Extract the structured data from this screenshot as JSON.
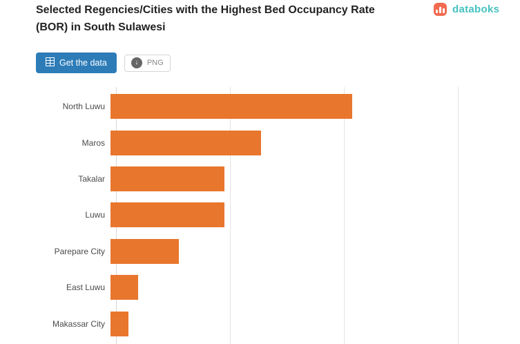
{
  "header": {
    "title": "Selected Regencies/Cities with the Highest Bed Occupancy Rate (BOR) in South Sulawesi",
    "brand": {
      "name": "databoks",
      "icon": "databoks-logo-icon"
    }
  },
  "toolbar": {
    "primary_button": "Get the data",
    "primary_icon": "table-data-icon",
    "secondary_button": "PNG",
    "secondary_icon": "download-image-icon"
  },
  "colors": {
    "bar": "#e8762d",
    "primary_button": "#2d7cb8",
    "brand_text": "#45c2c0",
    "brand_icon": "#f26b50",
    "gridline": "#e3e3e3"
  },
  "chart_data": {
    "type": "bar",
    "orientation": "horizontal",
    "title": "Selected Regencies/Cities with the Highest Bed Occupancy Rate (BOR) in South Sulawesi",
    "categories": [
      "North Luwu",
      "Maros",
      "Takalar",
      "Luwu",
      "Parepare City",
      "East Luwu",
      "Makassar City"
    ],
    "values": [
      53,
      33,
      25,
      25,
      15,
      6,
      4
    ],
    "unit": "%",
    "xlabel": "",
    "ylabel": "",
    "xlim": [
      0,
      87
    ],
    "x_gridlines": [
      0,
      25,
      50,
      75
    ],
    "grid": true,
    "legend": false,
    "bar_color": "#e8762d",
    "axis_tick_labels_visible": false
  }
}
